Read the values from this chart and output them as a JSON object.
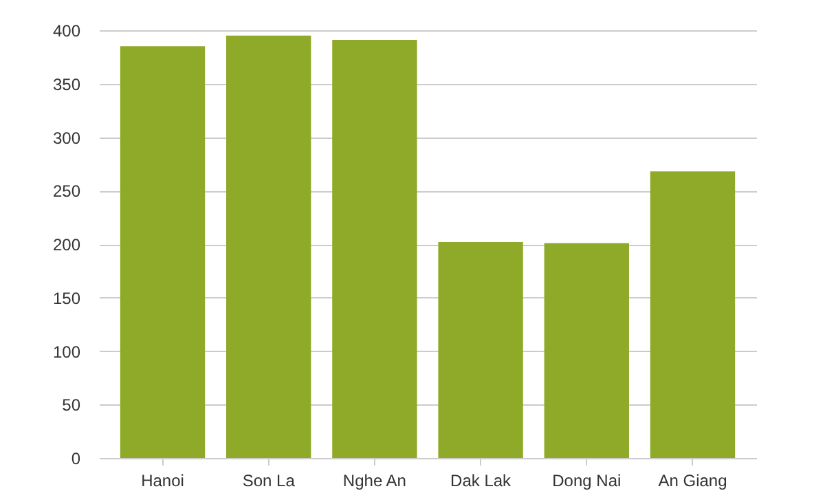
{
  "chart_data": {
    "type": "bar",
    "categories": [
      "Hanoi",
      "Son La",
      "Nghe An",
      "Dak Lak",
      "Dong Nai",
      "An Giang"
    ],
    "values": [
      385,
      395,
      391,
      202,
      201,
      268
    ],
    "color": "#8eaa28",
    "ylim": [
      0,
      400
    ],
    "yticks": [
      0,
      50,
      100,
      150,
      200,
      250,
      300,
      350,
      400
    ],
    "grid": "y"
  }
}
